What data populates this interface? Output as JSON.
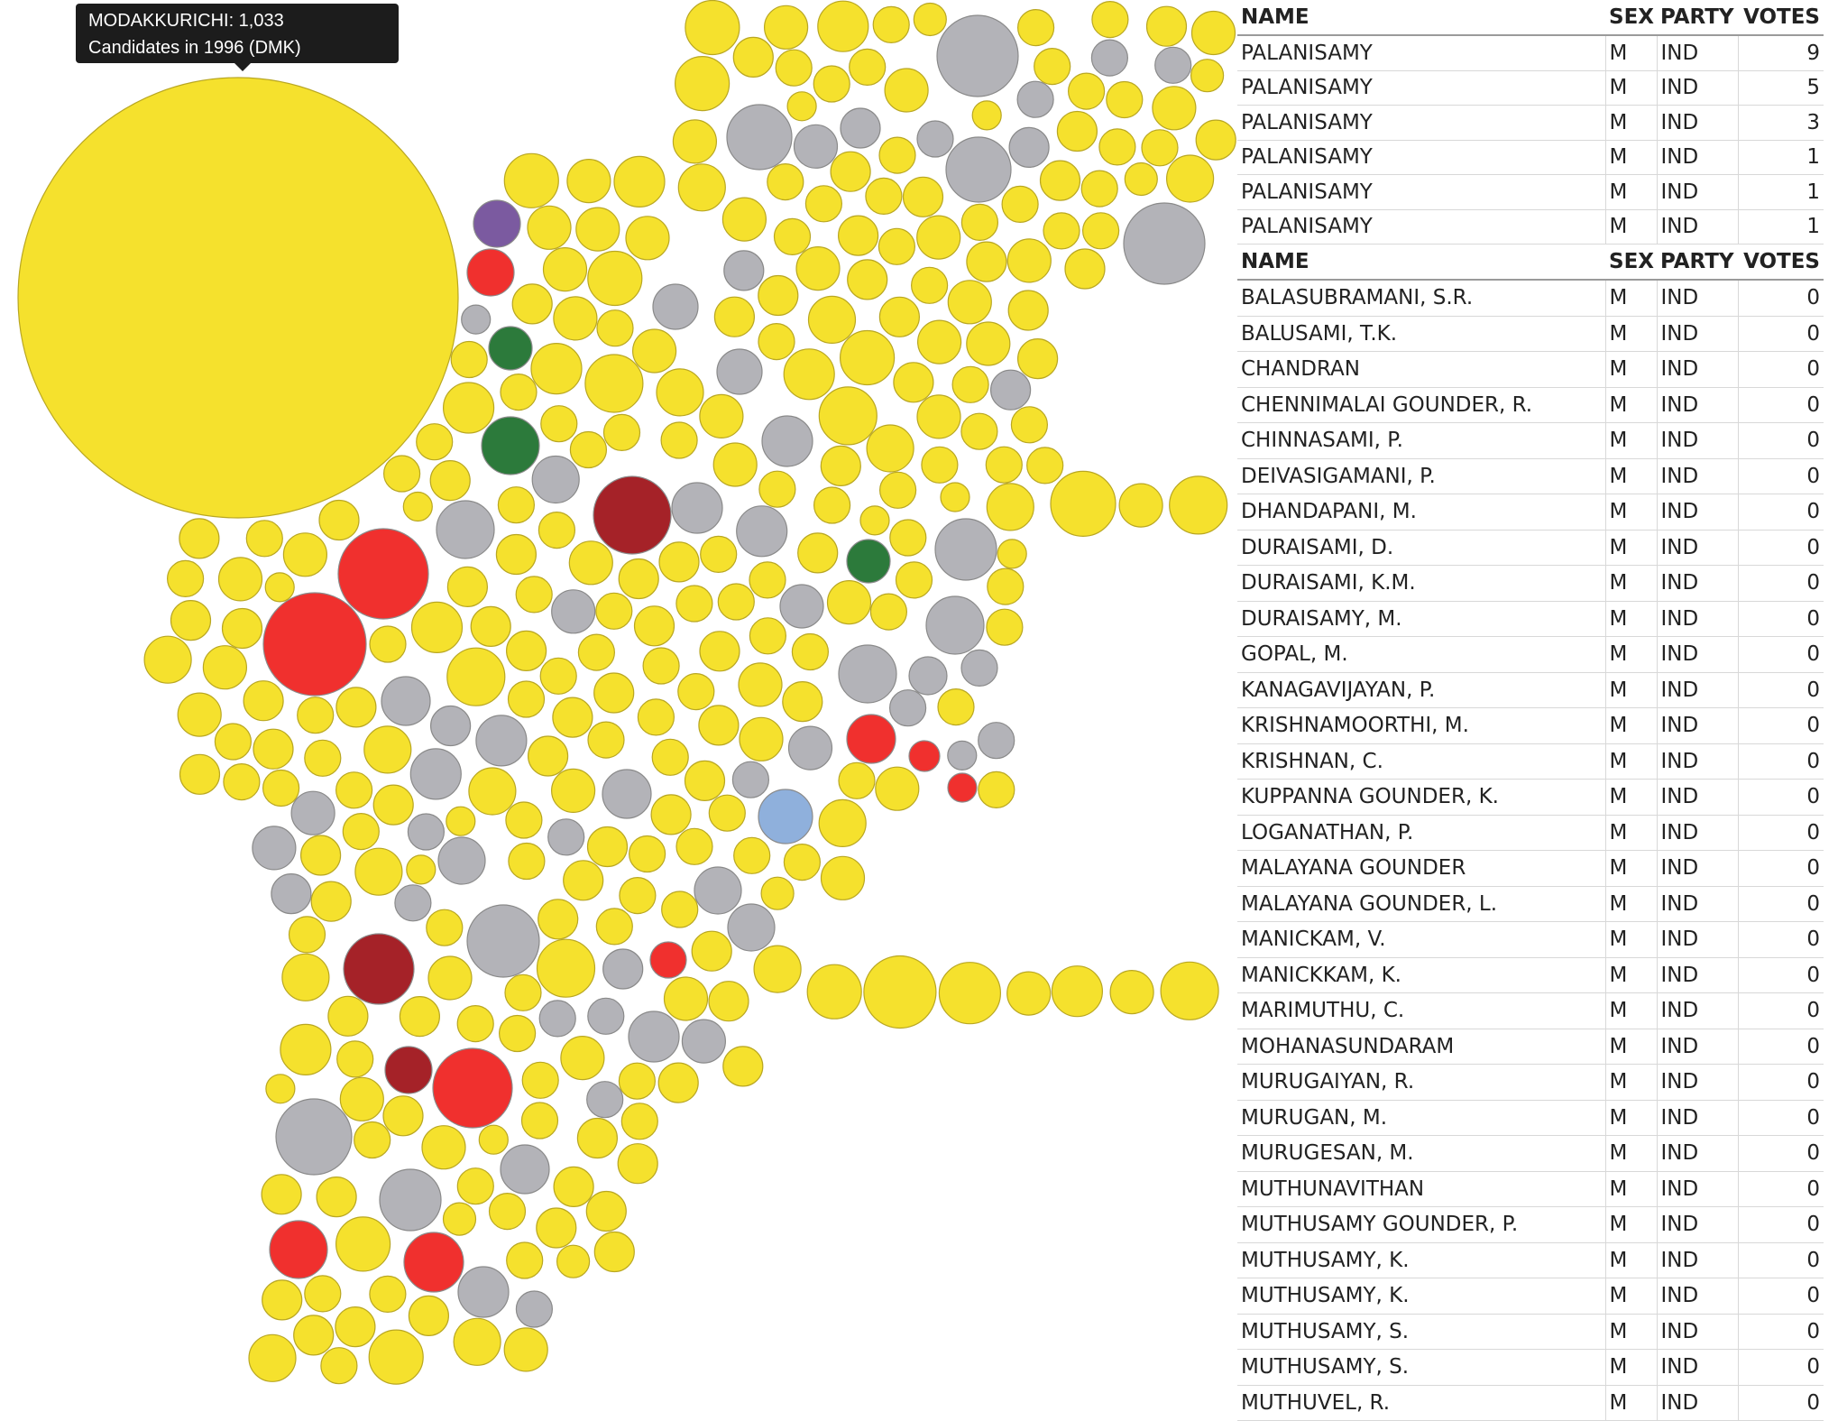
{
  "tooltip": {
    "line1": "MODAKKURICHI: 1,033",
    "line2": "Candidates in 1996 (DMK)"
  },
  "colors": {
    "DMK": "#f5e12d",
    "IND": "#b3b3b8",
    "party_red": "#f0302e",
    "party_darkred": "#a52228",
    "party_green": "#2c7a3b",
    "party_purple": "#7b5aa0",
    "party_blue": "#8fb0dc",
    "party_orange": "#f2962e"
  },
  "chart_data": {
    "type": "bubble",
    "title": "",
    "highlighted": {
      "constituency": "MODAKKURICHI",
      "candidates": 1033,
      "year": 1996,
      "party": "DMK"
    },
    "color_categories": [
      "yellow",
      "gray",
      "red",
      "darkred",
      "green",
      "purple",
      "blue",
      "orange"
    ]
  },
  "table_top": {
    "headers": [
      "NAME",
      "SEX",
      "PARTY",
      "VOTES"
    ],
    "rows": [
      [
        "PALANISAMY",
        "M",
        "IND",
        "9"
      ],
      [
        "PALANISAMY",
        "M",
        "IND",
        "5"
      ],
      [
        "PALANISAMY",
        "M",
        "IND",
        "3"
      ],
      [
        "PALANISAMY",
        "M",
        "IND",
        "1"
      ],
      [
        "PALANISAMY",
        "M",
        "IND",
        "1"
      ],
      [
        "PALANISAMY",
        "M",
        "IND",
        "1"
      ]
    ]
  },
  "table_bottom": {
    "headers": [
      "NAME",
      "SEX",
      "PARTY",
      "VOTES"
    ],
    "rows": [
      [
        "BALASUBRAMANI, S.R.",
        "M",
        "IND",
        "0"
      ],
      [
        "BALUSAMI, T.K.",
        "M",
        "IND",
        "0"
      ],
      [
        "CHANDRAN",
        "M",
        "IND",
        "0"
      ],
      [
        "CHENNIMALAI GOUNDER, R.",
        "M",
        "IND",
        "0"
      ],
      [
        "CHINNASAMI, P.",
        "M",
        "IND",
        "0"
      ],
      [
        "DEIVASIGAMANI, P.",
        "M",
        "IND",
        "0"
      ],
      [
        "DHANDAPANI, M.",
        "M",
        "IND",
        "0"
      ],
      [
        "DURAISAMI, D.",
        "M",
        "IND",
        "0"
      ],
      [
        "DURAISAMI, K.M.",
        "M",
        "IND",
        "0"
      ],
      [
        "DURAISAMY, M.",
        "M",
        "IND",
        "0"
      ],
      [
        "GOPAL, M.",
        "M",
        "IND",
        "0"
      ],
      [
        "KANAGAVIJAYAN, P.",
        "M",
        "IND",
        "0"
      ],
      [
        "KRISHNAMOORTHI, M.",
        "M",
        "IND",
        "0"
      ],
      [
        "KRISHNAN, C.",
        "M",
        "IND",
        "0"
      ],
      [
        "KUPPANNA GOUNDER, K.",
        "M",
        "IND",
        "0"
      ],
      [
        "LOGANATHAN, P.",
        "M",
        "IND",
        "0"
      ],
      [
        "MALAYANA GOUNDER",
        "M",
        "IND",
        "0"
      ],
      [
        "MALAYANA GOUNDER, L.",
        "M",
        "IND",
        "0"
      ],
      [
        "MANICKAM, V.",
        "M",
        "IND",
        "0"
      ],
      [
        "MANICKKAM, K.",
        "M",
        "IND",
        "0"
      ],
      [
        "MARIMUTHU, C.",
        "M",
        "IND",
        "0"
      ],
      [
        "MOHANASUNDARAM",
        "M",
        "IND",
        "0"
      ],
      [
        "MURUGAIYAN, R.",
        "M",
        "IND",
        "0"
      ],
      [
        "MURUGAN, M.",
        "M",
        "IND",
        "0"
      ],
      [
        "MURUGESAN, M.",
        "M",
        "IND",
        "0"
      ],
      [
        "MUTHUNAVITHAN",
        "M",
        "IND",
        "0"
      ],
      [
        "MUTHUSAMY GOUNDER, P.",
        "M",
        "IND",
        "0"
      ],
      [
        "MUTHUSAMY, K.",
        "M",
        "IND",
        "0"
      ],
      [
        "MUTHUSAMY, K.",
        "M",
        "IND",
        "0"
      ],
      [
        "MUTHUSAMY, S.",
        "M",
        "IND",
        "0"
      ],
      [
        "MUTHUSAMY, S.",
        "M",
        "IND",
        "0"
      ],
      [
        "MUTHUVEL, R.",
        "M",
        "IND",
        "0"
      ]
    ]
  }
}
